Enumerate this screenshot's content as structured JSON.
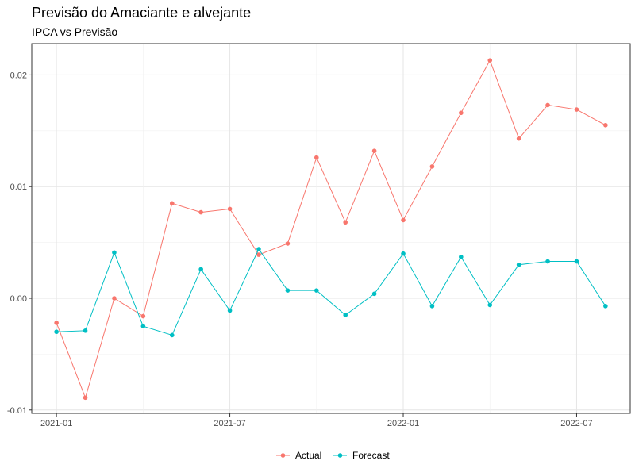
{
  "chart_data": {
    "type": "line",
    "title": "Previsão do Amaciante e alvejante",
    "subtitle": "IPCA vs Previsão",
    "xlabel": "",
    "ylabel": "",
    "x": [
      "2021-01",
      "2021-02",
      "2021-03",
      "2021-04",
      "2021-05",
      "2021-06",
      "2021-07",
      "2021-08",
      "2021-09",
      "2021-10",
      "2021-11",
      "2021-12",
      "2022-01",
      "2022-02",
      "2022-03",
      "2022-04",
      "2022-05",
      "2022-06",
      "2022-07",
      "2022-08"
    ],
    "x_ticks": [
      "2021-01",
      "2021-07",
      "2022-01",
      "2022-07"
    ],
    "y_ticks": [
      -0.01,
      0.0,
      0.01,
      0.02
    ],
    "y_tick_labels": [
      "-0.01",
      "0.00",
      "0.01",
      "0.02"
    ],
    "ylim": [
      -0.0103,
      0.0228
    ],
    "grid": true,
    "legend_position": "bottom",
    "series": [
      {
        "name": "Actual",
        "color": "#F8766D",
        "values": [
          -0.0022,
          -0.0089,
          0.0,
          -0.0016,
          0.0085,
          0.0077,
          0.008,
          0.0039,
          0.0049,
          0.0126,
          0.0068,
          0.0132,
          0.007,
          0.0118,
          0.0166,
          0.0213,
          0.0143,
          0.0173,
          0.0169,
          0.0155
        ]
      },
      {
        "name": "Forecast",
        "color": "#00BFC4",
        "values": [
          -0.003,
          -0.0029,
          0.0041,
          -0.0025,
          -0.0033,
          0.0026,
          -0.0011,
          0.0044,
          0.0007,
          0.0007,
          -0.0015,
          0.0004,
          0.004,
          -0.0007,
          0.0037,
          -0.0006,
          0.003,
          0.0033,
          0.0033,
          -0.0007
        ]
      }
    ]
  }
}
